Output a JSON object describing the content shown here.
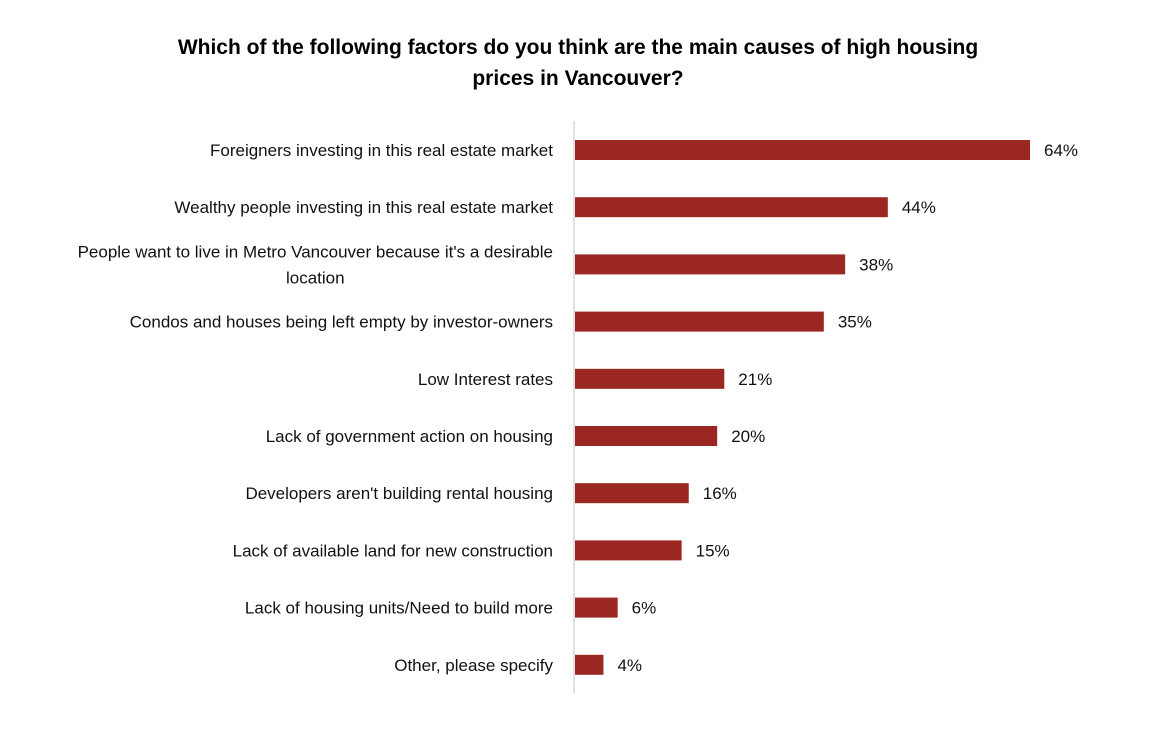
{
  "chart_data": {
    "type": "bar",
    "orientation": "horizontal",
    "title": "Which of the following factors do you think are the main causes of high housing prices in Vancouver?",
    "categories": [
      "Foreigners investing in this real estate market",
      "Wealthy people investing in this real estate market",
      "People want to live in Metro Vancouver because it's a desirable location",
      "Condos and houses being left empty by investor-owners",
      "Low Interest rates",
      "Lack of government action on housing",
      "Developers aren't building rental housing",
      "Lack of available land for new construction",
      "Lack of housing units/Need to build more",
      "Other, please specify"
    ],
    "values": [
      64,
      44,
      38,
      35,
      21,
      20,
      16,
      15,
      6,
      4
    ],
    "value_labels": [
      "64%",
      "44%",
      "38%",
      "35%",
      "21%",
      "20%",
      "16%",
      "15%",
      "6%",
      "4%"
    ],
    "xlim": [
      0,
      64
    ],
    "grid": false,
    "legend": "none",
    "bar_color": "#9b2723",
    "axis_color": "#d9d9d9"
  }
}
